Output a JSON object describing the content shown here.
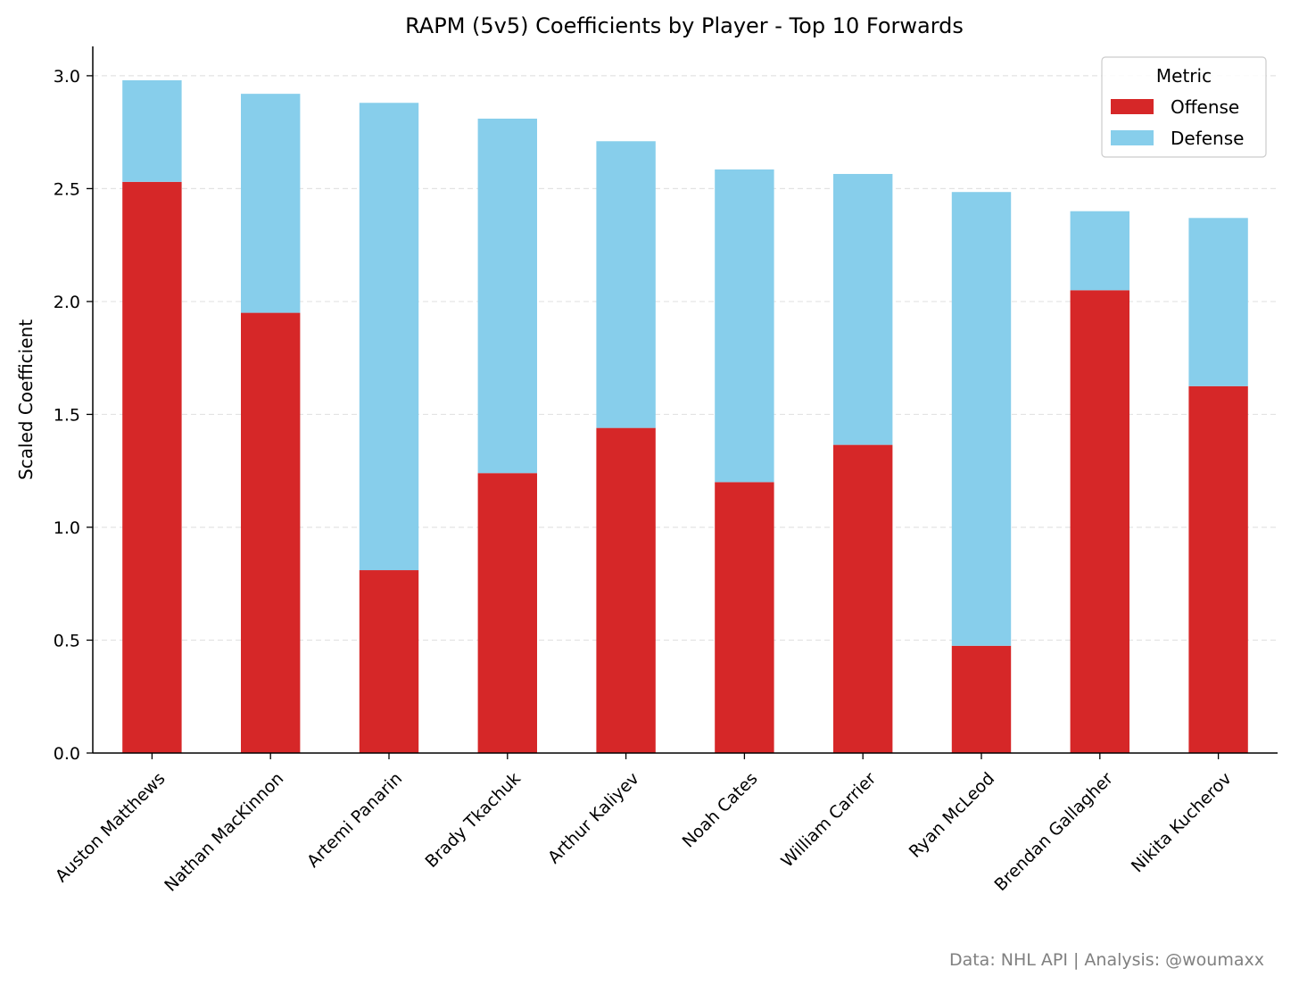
{
  "chart_data": {
    "type": "bar",
    "stacked": true,
    "title": "RAPM (5v5) Coefficients by Player - Top 10 Forwards",
    "xlabel": "",
    "ylabel": "Scaled Coefficient",
    "ylim": [
      0,
      3.13
    ],
    "yticks": [
      "0.0",
      "0.5",
      "1.0",
      "1.5",
      "2.0",
      "2.5",
      "3.0"
    ],
    "grid": "horizontal-dashed",
    "categories": [
      "Auston Matthews",
      "Nathan MacKinnon",
      "Artemi Panarin",
      "Brady Tkachuk",
      "Arthur Kaliyev",
      "Noah Cates",
      "William Carrier",
      "Ryan McLeod",
      "Brendan Gallagher",
      "Nikita Kucherov"
    ],
    "series": [
      {
        "name": "Offense",
        "color": "#d62728",
        "values": [
          2.53,
          1.95,
          0.81,
          1.24,
          1.44,
          1.2,
          1.365,
          0.475,
          2.05,
          1.625
        ]
      },
      {
        "name": "Defense",
        "color": "#87ceeb",
        "values": [
          0.45,
          0.97,
          2.07,
          1.57,
          1.27,
          1.385,
          1.2,
          2.01,
          0.35,
          0.745
        ]
      }
    ],
    "legend": {
      "title": "Metric",
      "placement": "top-right"
    }
  },
  "footer": {
    "credit": "Data: NHL API | Analysis: @woumaxx"
  }
}
